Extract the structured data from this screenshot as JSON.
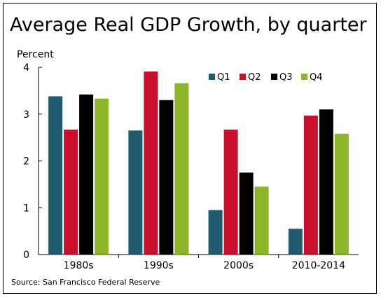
{
  "title": "Average Real GDP Growth, by quarter",
  "source": "Source: San Francisco Federal Reserve",
  "chart_data": {
    "type": "bar",
    "title": "Average Real GDP Growth, by quarter",
    "ylabel": "Percent",
    "xlabel": "",
    "ylim": [
      0,
      4
    ],
    "yticks": [
      0,
      1,
      2,
      3,
      4
    ],
    "categories": [
      "1980s",
      "1990s",
      "2000s",
      "2010-2014"
    ],
    "series": [
      {
        "name": "Q1",
        "color": "#1f5a6e",
        "values": [
          3.38,
          2.65,
          0.95,
          0.55
        ]
      },
      {
        "name": "Q2",
        "color": "#c8102e",
        "values": [
          2.67,
          3.91,
          2.67,
          2.97
        ]
      },
      {
        "name": "Q3",
        "color": "#000000",
        "values": [
          3.42,
          3.3,
          1.75,
          3.1
        ]
      },
      {
        "name": "Q4",
        "color": "#8db52a",
        "values": [
          3.33,
          3.66,
          1.45,
          2.58
        ]
      }
    ],
    "legend": "top-right",
    "grid": false
  }
}
